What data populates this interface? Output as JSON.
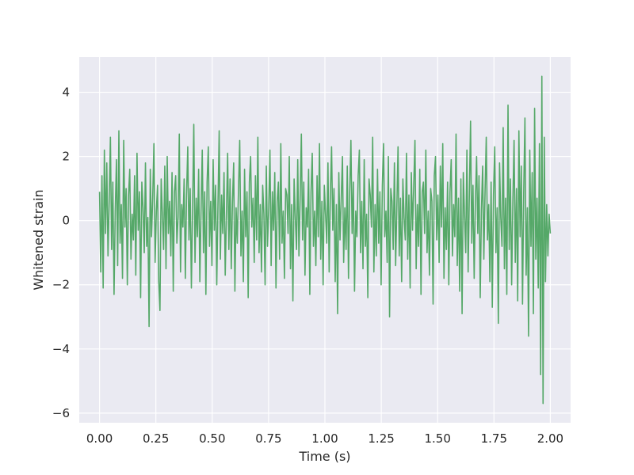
{
  "chart_data": {
    "type": "line",
    "title": "",
    "xlabel": "Time (s)",
    "ylabel": "Whitened strain",
    "xlim": [
      -0.09,
      2.09
    ],
    "ylim": [
      -6.3,
      5.1
    ],
    "grid": true,
    "legend": "none",
    "x_ticks": [
      0.0,
      0.25,
      0.5,
      0.75,
      1.0,
      1.25,
      1.5,
      1.75,
      2.0
    ],
    "x_tick_labels": [
      "0.00",
      "0.25",
      "0.50",
      "0.75",
      "1.00",
      "1.25",
      "1.50",
      "1.75",
      "2.00"
    ],
    "y_ticks": [
      -6,
      -4,
      -2,
      0,
      2,
      4
    ],
    "y_tick_labels": [
      "−6",
      "−4",
      "−2",
      "0",
      "2",
      "4"
    ],
    "colors": {
      "plot_bg": "#eaeaf2",
      "grid": "#ffffff",
      "line": "#55a868"
    },
    "series": [
      {
        "x_start": 0.0,
        "x_end": 2.0,
        "values": [
          0.9,
          -1.6,
          1.4,
          -2.1,
          2.2,
          -0.4,
          1.8,
          -1.1,
          0.6,
          2.6,
          -0.9,
          1.2,
          -2.3,
          0.3,
          1.9,
          -1.4,
          2.8,
          -0.7,
          0.5,
          -1.8,
          2.5,
          -0.2,
          1.0,
          -2.0,
          0.8,
          1.6,
          -1.2,
          0.2,
          -0.6,
          1.4,
          -1.7,
          2.1,
          -0.3,
          0.9,
          -2.4,
          1.2,
          0.4,
          -1.0,
          1.8,
          -0.8,
          0.1,
          -3.3,
          1.6,
          -0.5,
          0.7,
          2.4,
          -1.3,
          0.3,
          1.1,
          -1.9,
          -2.8,
          1.3,
          0.2,
          -0.9,
          1.7,
          -1.5,
          2.0,
          -0.4,
          0.6,
          -1.1,
          1.5,
          -2.2,
          0.9,
          1.4,
          -0.7,
          0.1,
          2.7,
          -1.6,
          0.5,
          -0.2,
          1.3,
          -1.8,
          0.8,
          2.3,
          -0.6,
          1.0,
          -2.1,
          0.4,
          3.0,
          -1.3,
          0.7,
          -0.5,
          1.6,
          -1.9,
          0.3,
          2.2,
          -1.0,
          0.9,
          -2.3,
          1.2,
          2.3,
          -0.8,
          0.6,
          -1.4,
          1.9,
          -0.3,
          1.1,
          -2.0,
          0.5,
          2.8,
          -1.2,
          0.8,
          -0.4,
          1.5,
          -1.7,
          0.2,
          2.1,
          -0.9,
          1.3,
          -1.5,
          0.6,
          1.8,
          -2.2,
          0.4,
          -0.7,
          1.0,
          2.5,
          -1.1,
          0.3,
          -1.9,
          1.6,
          -0.5,
          0.9,
          -2.4,
          1.2,
          2.0,
          -0.2,
          0.7,
          -1.3,
          1.4,
          -0.6,
          2.6,
          -1.0,
          0.5,
          -1.6,
          1.1,
          0.2,
          -2.0,
          1.7,
          -0.8,
          0.4,
          2.2,
          -1.4,
          0.9,
          -0.3,
          1.5,
          -2.1,
          0.6,
          1.2,
          -1.2,
          2.4,
          -0.7,
          0.3,
          -1.8,
          1.0,
          0.8,
          -0.4,
          2.0,
          -1.5,
          0.5,
          -2.5,
          1.3,
          0.1,
          -0.9,
          1.9,
          -1.1,
          0.7,
          2.7,
          -0.6,
          1.2,
          -1.7,
          0.4,
          -0.2,
          1.6,
          -2.3,
          0.9,
          2.1,
          -0.8,
          0.3,
          -1.4,
          1.4,
          -0.5,
          2.4,
          -1.2,
          0.6,
          -2.0,
          1.1,
          0.2,
          -0.7,
          1.8,
          -1.6,
          0.8,
          2.3,
          -0.3,
          1.0,
          -1.9,
          0.5,
          -2.9,
          1.5,
          -0.6,
          0.7,
          2.0,
          -1.3,
          0.4,
          -0.9,
          1.7,
          -1.8,
          0.9,
          2.5,
          -0.4,
          1.2,
          -2.2,
          0.3,
          -0.5,
          1.4,
          2.2,
          -1.0,
          0.6,
          -1.5,
          1.9,
          -0.8,
          0.2,
          -2.4,
          1.3,
          0.8,
          -0.2,
          2.6,
          -1.6,
          0.5,
          -1.1,
          1.6,
          -0.7,
          0.9,
          -2.0,
          1.1,
          2.4,
          -0.5,
          0.3,
          -1.3,
          2.0,
          -3.0,
          1.0,
          0.6,
          -0.9,
          1.8,
          -1.4,
          0.4,
          2.3,
          -1.1,
          0.7,
          -1.9,
          1.3,
          0.1,
          -0.6,
          2.1,
          -1.2,
          0.8,
          -2.1,
          1.5,
          -0.3,
          1.1,
          2.5,
          -1.5,
          0.5,
          -0.8,
          1.6,
          -2.3,
          0.9,
          1.2,
          -0.4,
          2.2,
          -1.0,
          0.3,
          -1.7,
          1.0,
          0.6,
          -2.6,
          1.4,
          2.0,
          -0.6,
          0.8,
          -1.3,
          1.7,
          -0.2,
          2.4,
          -1.8,
          0.4,
          -0.9,
          1.2,
          -2.0,
          0.9,
          1.9,
          -1.1,
          0.5,
          -0.5,
          2.7,
          -1.4,
          0.7,
          -2.2,
          1.3,
          -2.9,
          1.5,
          0.2,
          -1.0,
          2.2,
          -1.6,
          0.8,
          3.1,
          -0.7,
          1.1,
          -1.8,
          0.6,
          2.0,
          -0.4,
          1.4,
          -2.4,
          0.3,
          1.7,
          -1.2,
          0.9,
          2.6,
          -0.6,
          0.5,
          -1.9,
          1.2,
          -2.7,
          0.8,
          2.3,
          -1.0,
          0.4,
          -3.2,
          1.8,
          0.1,
          -0.8,
          2.9,
          -1.5,
          0.7,
          -2.3,
          3.6,
          -0.9,
          1.3,
          -2.0,
          0.6,
          2.5,
          -1.3,
          1.0,
          -2.5,
          2.8,
          -0.5,
          1.7,
          -2.6,
          0.9,
          3.2,
          -1.7,
          0.4,
          -3.6,
          2.2,
          -0.8,
          1.5,
          -2.9,
          3.5,
          -1.2,
          0.7,
          -2.1,
          2.4,
          -4.8,
          4.5,
          -5.7,
          2.6,
          -1.9,
          0.5,
          -1.1,
          0.2,
          -0.4
        ]
      }
    ]
  }
}
